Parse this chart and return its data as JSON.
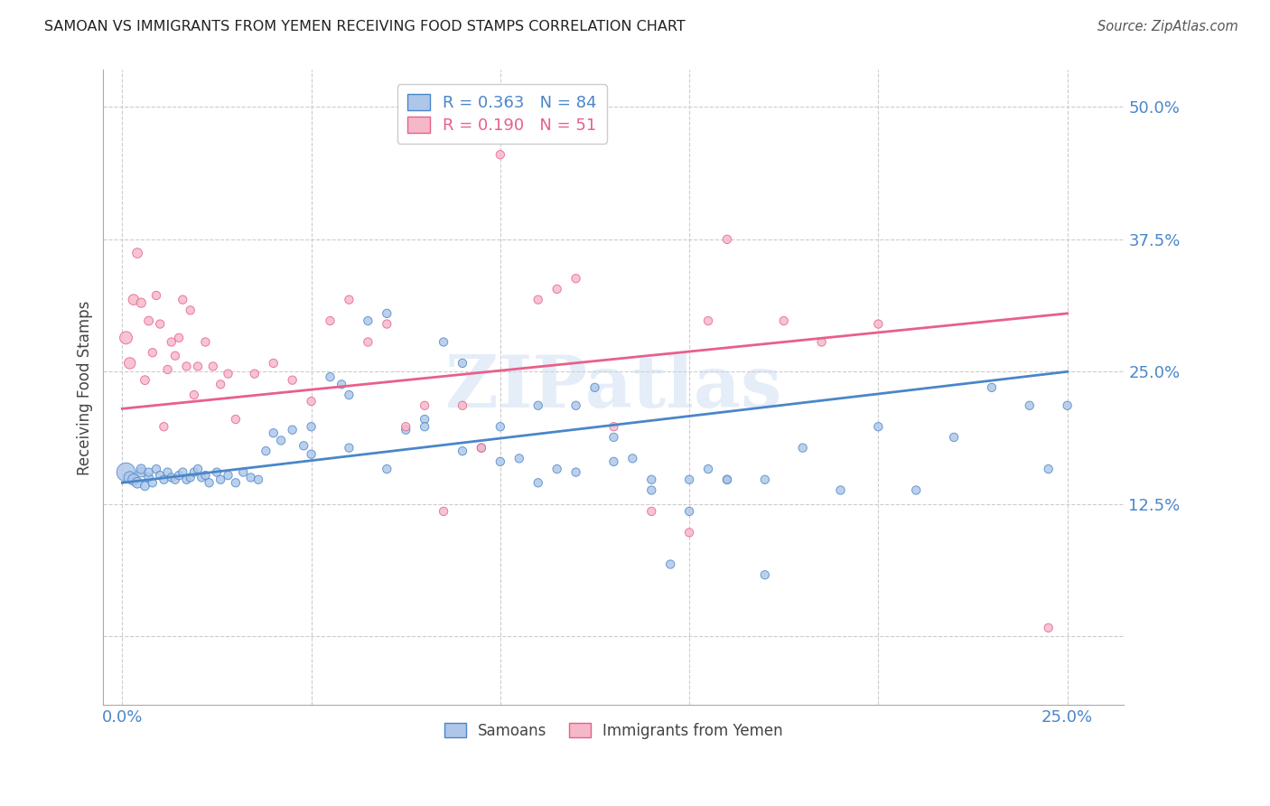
{
  "title": "SAMOAN VS IMMIGRANTS FROM YEMEN RECEIVING FOOD STAMPS CORRELATION CHART",
  "source": "Source: ZipAtlas.com",
  "ylabel": "Receiving Food Stamps",
  "y_ticks": [
    0.0,
    0.125,
    0.25,
    0.375,
    0.5
  ],
  "y_tick_labels": [
    "",
    "12.5%",
    "25.0%",
    "37.5%",
    "50.0%"
  ],
  "x_ticks": [
    0.0,
    0.05,
    0.1,
    0.15,
    0.2,
    0.25
  ],
  "x_tick_labels": [
    "0.0%",
    "",
    "",
    "",
    "",
    "25.0%"
  ],
  "xlim": [
    -0.005,
    0.265
  ],
  "ylim": [
    -0.065,
    0.535
  ],
  "blue_color": "#aec6e8",
  "pink_color": "#f5b8c8",
  "blue_edge_color": "#4a86c8",
  "pink_edge_color": "#e8608a",
  "blue_line_color": "#4a86c8",
  "pink_line_color": "#e8608a",
  "legend_blue_r": "0.363",
  "legend_blue_n": "84",
  "legend_pink_r": "0.190",
  "legend_pink_n": "51",
  "watermark": "ZIPatlas",
  "blue_line_x0": 0.0,
  "blue_line_y0": 0.145,
  "blue_line_x1": 0.25,
  "blue_line_y1": 0.25,
  "pink_line_x0": 0.0,
  "pink_line_y0": 0.215,
  "pink_line_x1": 0.25,
  "pink_line_y1": 0.305,
  "blue_scatter_x": [
    0.001,
    0.002,
    0.003,
    0.004,
    0.005,
    0.005,
    0.006,
    0.007,
    0.007,
    0.008,
    0.009,
    0.01,
    0.011,
    0.012,
    0.013,
    0.014,
    0.015,
    0.016,
    0.017,
    0.018,
    0.019,
    0.02,
    0.021,
    0.022,
    0.023,
    0.025,
    0.026,
    0.028,
    0.03,
    0.032,
    0.034,
    0.036,
    0.038,
    0.04,
    0.042,
    0.045,
    0.048,
    0.05,
    0.055,
    0.058,
    0.06,
    0.065,
    0.07,
    0.075,
    0.08,
    0.085,
    0.09,
    0.095,
    0.1,
    0.105,
    0.11,
    0.115,
    0.12,
    0.125,
    0.13,
    0.135,
    0.14,
    0.145,
    0.15,
    0.155,
    0.16,
    0.17,
    0.18,
    0.19,
    0.2,
    0.21,
    0.22,
    0.23,
    0.24,
    0.245,
    0.25,
    0.05,
    0.06,
    0.07,
    0.08,
    0.09,
    0.1,
    0.11,
    0.12,
    0.13,
    0.14,
    0.15,
    0.16,
    0.17
  ],
  "blue_scatter_y": [
    0.155,
    0.15,
    0.148,
    0.145,
    0.155,
    0.158,
    0.142,
    0.15,
    0.155,
    0.145,
    0.158,
    0.152,
    0.148,
    0.155,
    0.15,
    0.148,
    0.152,
    0.155,
    0.148,
    0.15,
    0.155,
    0.158,
    0.15,
    0.152,
    0.145,
    0.155,
    0.148,
    0.152,
    0.145,
    0.155,
    0.15,
    0.148,
    0.175,
    0.192,
    0.185,
    0.195,
    0.18,
    0.172,
    0.245,
    0.238,
    0.228,
    0.298,
    0.305,
    0.195,
    0.205,
    0.278,
    0.258,
    0.178,
    0.198,
    0.168,
    0.218,
    0.158,
    0.218,
    0.235,
    0.188,
    0.168,
    0.138,
    0.068,
    0.118,
    0.158,
    0.148,
    0.058,
    0.178,
    0.138,
    0.198,
    0.138,
    0.188,
    0.235,
    0.218,
    0.158,
    0.218,
    0.198,
    0.178,
    0.158,
    0.198,
    0.175,
    0.165,
    0.145,
    0.155,
    0.165,
    0.148,
    0.148,
    0.148,
    0.148
  ],
  "blue_marker_sizes": [
    220,
    90,
    80,
    70,
    60,
    55,
    50,
    50,
    45,
    45,
    45,
    45,
    45,
    45,
    45,
    45,
    45,
    45,
    45,
    45,
    45,
    45,
    45,
    45,
    45,
    45,
    45,
    45,
    45,
    45,
    45,
    45,
    45,
    45,
    45,
    45,
    45,
    45,
    45,
    45,
    45,
    45,
    45,
    45,
    45,
    45,
    45,
    45,
    45,
    45,
    45,
    45,
    45,
    45,
    45,
    45,
    45,
    45,
    45,
    45,
    45,
    45,
    45,
    45,
    45,
    45,
    45,
    45,
    45,
    45,
    45,
    45,
    45,
    45,
    45,
    45,
    45,
    45,
    45,
    45,
    45,
    45,
    45,
    45
  ],
  "pink_scatter_x": [
    0.001,
    0.002,
    0.003,
    0.004,
    0.005,
    0.006,
    0.007,
    0.008,
    0.009,
    0.01,
    0.011,
    0.012,
    0.013,
    0.014,
    0.015,
    0.016,
    0.017,
    0.018,
    0.019,
    0.02,
    0.022,
    0.024,
    0.026,
    0.028,
    0.03,
    0.035,
    0.04,
    0.045,
    0.05,
    0.055,
    0.06,
    0.065,
    0.07,
    0.075,
    0.08,
    0.085,
    0.09,
    0.095,
    0.1,
    0.11,
    0.115,
    0.12,
    0.13,
    0.14,
    0.15,
    0.155,
    0.16,
    0.175,
    0.185,
    0.2,
    0.245
  ],
  "pink_scatter_y": [
    0.282,
    0.258,
    0.318,
    0.362,
    0.315,
    0.242,
    0.298,
    0.268,
    0.322,
    0.295,
    0.198,
    0.252,
    0.278,
    0.265,
    0.282,
    0.318,
    0.255,
    0.308,
    0.228,
    0.255,
    0.278,
    0.255,
    0.238,
    0.248,
    0.205,
    0.248,
    0.258,
    0.242,
    0.222,
    0.298,
    0.318,
    0.278,
    0.295,
    0.198,
    0.218,
    0.118,
    0.218,
    0.178,
    0.455,
    0.318,
    0.328,
    0.338,
    0.198,
    0.118,
    0.098,
    0.298,
    0.375,
    0.298,
    0.278,
    0.295,
    0.008
  ],
  "pink_marker_sizes": [
    100,
    80,
    70,
    60,
    55,
    50,
    50,
    45,
    45,
    45,
    45,
    45,
    45,
    45,
    45,
    45,
    45,
    45,
    45,
    45,
    45,
    45,
    45,
    45,
    45,
    45,
    45,
    45,
    45,
    45,
    45,
    45,
    45,
    45,
    45,
    45,
    45,
    45,
    45,
    45,
    45,
    45,
    45,
    45,
    45,
    45,
    45,
    45,
    45,
    45,
    45
  ]
}
